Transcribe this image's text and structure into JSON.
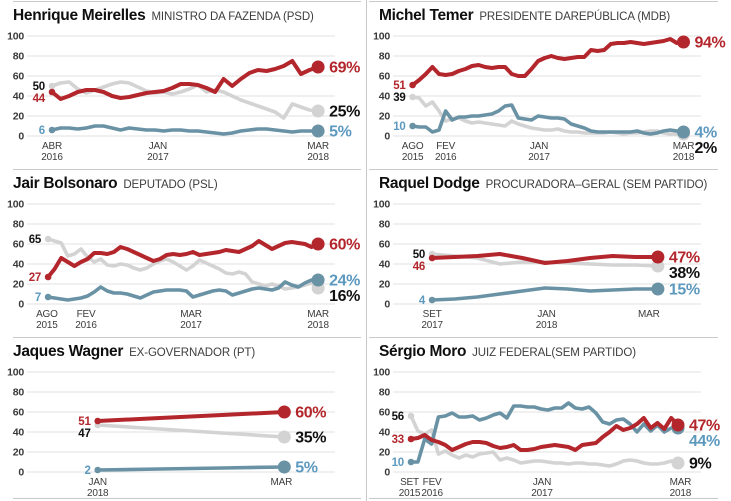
{
  "palette": {
    "red": "#b3262c",
    "gray": "#d3d3d3",
    "blue": "#6a92a5",
    "blue_label": "#5d99bf",
    "black": "#111111",
    "grid": "#e0e0e0",
    "axis_text": "#3b3b3b",
    "rule": "#c9c9c9",
    "background": "#ffffff"
  },
  "chart_data": {
    "type": "line",
    "title": "",
    "xlabel": "",
    "ylabel": "",
    "ylim": [
      0,
      100
    ],
    "y_ticks": [
      0,
      20,
      40,
      60,
      80,
      100
    ],
    "grid": true,
    "legend": "none",
    "panels": [
      {
        "name": "Henrique Meirelles",
        "role": "MINISTRO DA FAZENDA (PSD)",
        "span": {
          "start": 0.073,
          "end": 0.957
        },
        "x_ticks": [
          {
            "top": "ABR",
            "bottom": "2016",
            "frac": 0.073
          },
          {
            "top": "JAN",
            "bottom": "2017",
            "frac": 0.425
          },
          {
            "top": "MAR",
            "bottom": "2018",
            "frac": 0.957
          }
        ],
        "series": [
          {
            "color": "gray",
            "label_color": "black",
            "start_label": "50",
            "end_label": "25%",
            "values": [
              50,
              53,
              54,
              47,
              43,
              46,
              49,
              52,
              54,
              53,
              49,
              45,
              43,
              44,
              42,
              44,
              47,
              51,
              44,
              46,
              44,
              40,
              36,
              33,
              30,
              27,
              24,
              18,
              32,
              29,
              26,
              25
            ]
          },
          {
            "color": "blue",
            "label_color": "blue_label",
            "start_label": "6",
            "end_label": "5%",
            "values": [
              6,
              8,
              8,
              7,
              8,
              10,
              10,
              8,
              6,
              8,
              7,
              6,
              6,
              5,
              6,
              6,
              5,
              5,
              4,
              3,
              2,
              3,
              5,
              6,
              7,
              7,
              6,
              5,
              4,
              5,
              5,
              5
            ]
          },
          {
            "color": "red",
            "label_color": "red",
            "start_label": "44",
            "end_label": "69%",
            "values": [
              44,
              37,
              40,
              44,
              46,
              46,
              44,
              40,
              38,
              39,
              41,
              43,
              44,
              45,
              48,
              52,
              52,
              51,
              48,
              44,
              57,
              50,
              57,
              63,
              66,
              65,
              67,
              70,
              75,
              62,
              66,
              69
            ]
          }
        ]
      },
      {
        "name": "Michel Temer",
        "role": "PRESIDENTE DAREPÚBLICA (MDB)",
        "span": {
          "start": 0.055,
          "end": 0.955
        },
        "x_ticks": [
          {
            "top": "AGO",
            "bottom": "2015",
            "frac": 0.055
          },
          {
            "top": "FEV",
            "bottom": "2016",
            "frac": 0.165
          },
          {
            "top": "JAN",
            "bottom": "2017",
            "frac": 0.475
          },
          {
            "top": "MAR",
            "bottom": "2018",
            "frac": 0.955
          }
        ],
        "series": [
          {
            "color": "gray",
            "label_color": "black",
            "start_label": "39",
            "end_label": "2%",
            "values": [
              39,
              38,
              30,
              34,
              25,
              15,
              17,
              18,
              15,
              13,
              14,
              13,
              12,
              11,
              10,
              15,
              12,
              10,
              8,
              7,
              6,
              6,
              7,
              5,
              4,
              4,
              3,
              3,
              3,
              3,
              4,
              3,
              2,
              3,
              3,
              4,
              5,
              5,
              3,
              2,
              2,
              2
            ]
          },
          {
            "color": "blue",
            "label_color": "blue_label",
            "start_label": "10",
            "end_label": "4%",
            "values": [
              10,
              9,
              9,
              4,
              6,
              25,
              16,
              19,
              19,
              20,
              20,
              21,
              22,
              25,
              30,
              31,
              18,
              17,
              16,
              20,
              19,
              18,
              18,
              17,
              12,
              10,
              8,
              5,
              4,
              4,
              4,
              4,
              4,
              4,
              5,
              3,
              2,
              3,
              5,
              6,
              5,
              4
            ]
          },
          {
            "color": "red",
            "label_color": "red",
            "start_label": "51",
            "end_label": "94%",
            "values": [
              51,
              56,
              62,
              69,
              62,
              61,
              62,
              65,
              67,
              70,
              71,
              69,
              68,
              69,
              69,
              62,
              60,
              60,
              67,
              75,
              78,
              80,
              78,
              77,
              78,
              79,
              79,
              86,
              85,
              86,
              92,
              93,
              93,
              94,
              93,
              92,
              93,
              94,
              95,
              97,
              93,
              94
            ]
          }
        ]
      },
      {
        "name": "Jair Bolsonaro",
        "role": "DEPUTADO (PSL)",
        "span": {
          "start": 0.06,
          "end": 0.957
        },
        "x_ticks": [
          {
            "top": "AGO",
            "bottom": "2015",
            "frac": 0.056
          },
          {
            "top": "FEV",
            "bottom": "2016",
            "frac": 0.186
          },
          {
            "top": "MAR",
            "bottom": "2017",
            "frac": 0.535
          },
          {
            "top": "MAR",
            "bottom": "2018",
            "frac": 0.957
          }
        ],
        "series": [
          {
            "color": "gray",
            "label_color": "black",
            "start_label": "65",
            "end_label": "16%",
            "values": [
              65,
              63,
              61,
              48,
              50,
              55,
              47,
              42,
              45,
              39,
              38,
              40,
              39,
              36,
              34,
              36,
              40,
              43,
              45,
              42,
              38,
              34,
              38,
              44,
              41,
              38,
              35,
              31,
              30,
              32,
              30,
              22,
              20,
              18,
              20,
              18,
              15,
              16,
              17,
              19,
              21,
              16
            ]
          },
          {
            "color": "blue",
            "label_color": "blue_label",
            "start_label": "7",
            "end_label": "24%",
            "values": [
              7,
              6,
              5,
              4,
              5,
              6,
              8,
              12,
              17,
              13,
              11,
              11,
              10,
              8,
              6,
              9,
              12,
              13,
              14,
              14,
              14,
              13,
              7,
              9,
              11,
              13,
              14,
              13,
              9,
              11,
              13,
              15,
              16,
              15,
              14,
              16,
              22,
              19,
              17,
              21,
              24,
              24
            ]
          },
          {
            "color": "red",
            "label_color": "red",
            "start_label": "27",
            "end_label": "60%",
            "values": [
              27,
              35,
              46,
              42,
              38,
              42,
              45,
              51,
              51,
              50,
              52,
              57,
              55,
              52,
              49,
              46,
              43,
              45,
              49,
              50,
              49,
              50,
              52,
              49,
              50,
              51,
              52,
              54,
              53,
              52,
              55,
              58,
              63,
              59,
              55,
              58,
              61,
              62,
              61,
              60,
              57,
              60
            ]
          }
        ]
      },
      {
        "name": "Raquel Dodge",
        "role": "PROCURADORA–GERAL (SEM PARTIDO)",
        "span": {
          "start": 0.12,
          "end": 0.87
        },
        "x_ticks": [
          {
            "top": "SET",
            "bottom": "2017",
            "frac": 0.12
          },
          {
            "top": "JAN",
            "bottom": "2018",
            "frac": 0.5
          },
          {
            "top": "MAR",
            "bottom": "",
            "frac": 0.84
          }
        ],
        "series": [
          {
            "color": "gray",
            "label_color": "black",
            "start_label": "50",
            "end_label": "38%",
            "values": [
              50,
              48,
              46,
              40,
              42,
              42,
              41,
              40,
              39,
              39,
              38
            ]
          },
          {
            "color": "blue",
            "label_color": "blue_label",
            "start_label": "4",
            "end_label": "15%",
            "values": [
              4,
              5,
              7,
              10,
              13,
              16,
              15,
              13,
              14,
              15,
              15
            ]
          },
          {
            "color": "red",
            "label_color": "red",
            "start_label": "46",
            "end_label": "47%",
            "values": [
              46,
              47,
              48,
              50,
              46,
              41,
              43,
              46,
              48,
              47,
              47
            ]
          }
        ]
      },
      {
        "name": "Jaques Wagner",
        "role": "EX-GOVERNADOR (PT)",
        "span": {
          "start": 0.225,
          "end": 0.845
        },
        "x_ticks": [
          {
            "top": "JAN",
            "bottom": "2018",
            "frac": 0.225
          },
          {
            "top": "MAR",
            "bottom": "",
            "frac": 0.835
          }
        ],
        "series": [
          {
            "color": "gray",
            "label_color": "black",
            "start_label": "47",
            "end_label": "35%",
            "values": [
              47,
              43,
              39,
              35
            ]
          },
          {
            "color": "blue",
            "label_color": "blue_label",
            "start_label": "2",
            "end_label": "5%",
            "values": [
              2,
              3,
              4,
              5
            ]
          },
          {
            "color": "red",
            "label_color": "red",
            "start_label": "51",
            "end_label": "60%",
            "values": [
              51,
              54,
              57,
              60
            ]
          }
        ]
      },
      {
        "name": "Sérgio Moro",
        "role": "JUIZ FEDERAL(SEM PARTIDO)",
        "span": {
          "start": 0.05,
          "end": 0.937
        },
        "x_ticks": [
          {
            "top": "SET",
            "bottom": "2015",
            "frac": 0.045
          },
          {
            "top": "FEV",
            "bottom": "2016",
            "frac": 0.12
          },
          {
            "top": "JAN",
            "bottom": "2017",
            "frac": 0.485
          },
          {
            "top": "MAR",
            "bottom": "2018",
            "frac": 0.945
          }
        ],
        "series": [
          {
            "color": "gray",
            "label_color": "black",
            "start_label": "56",
            "end_label": "9%",
            "values": [
              56,
              41,
              38,
              42,
              18,
              21,
              17,
              14,
              17,
              15,
              18,
              19,
              20,
              12,
              14,
              12,
              9,
              10,
              11,
              11,
              10,
              9,
              9,
              8,
              9,
              9,
              8,
              8,
              7,
              6,
              8,
              11,
              12,
              11,
              9,
              8,
              8,
              9,
              11,
              9
            ]
          },
          {
            "color": "blue",
            "label_color": "blue_label",
            "start_label": "10",
            "end_label": "44%",
            "values": [
              10,
              10,
              33,
              28,
              55,
              56,
              59,
              55,
              55,
              56,
              52,
              54,
              57,
              59,
              54,
              66,
              66,
              65,
              65,
              63,
              62,
              64,
              64,
              69,
              64,
              63,
              65,
              59,
              50,
              48,
              52,
              53,
              48,
              40,
              48,
              41,
              47,
              40,
              44,
              44
            ]
          },
          {
            "color": "red",
            "label_color": "red",
            "start_label": "33",
            "end_label": "47%",
            "values": [
              33,
              34,
              37,
              32,
              30,
              27,
              22,
              25,
              28,
              30,
              30,
              29,
              26,
              24,
              25,
              27,
              22,
              22,
              23,
              25,
              26,
              27,
              26,
              25,
              22,
              27,
              28,
              29,
              35,
              40,
              46,
              42,
              44,
              48,
              54,
              44,
              49,
              43,
              54,
              47
            ]
          }
        ]
      }
    ]
  }
}
